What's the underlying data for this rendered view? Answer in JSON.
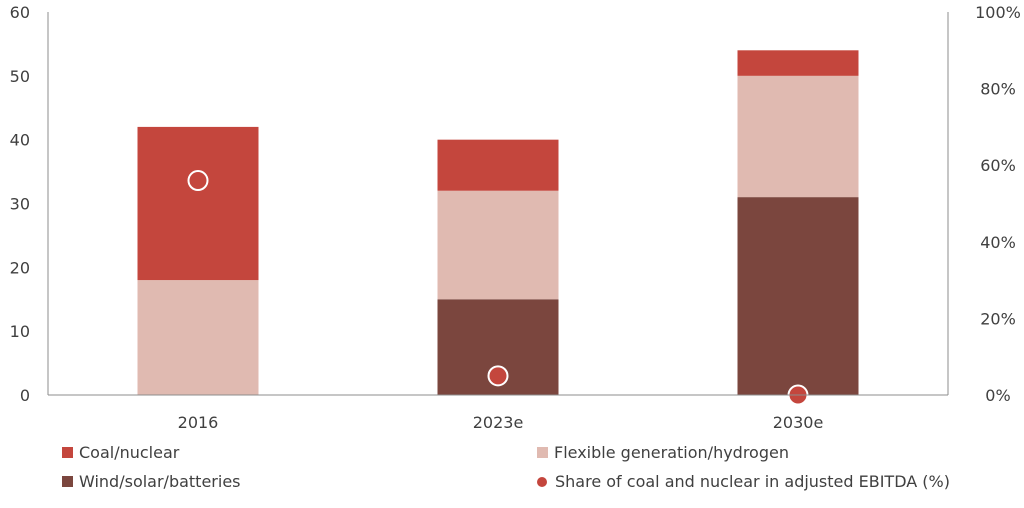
{
  "chart_data": {
    "type": "bar",
    "stacked": true,
    "categories": [
      "2016",
      "2023e",
      "2030e"
    ],
    "series": [
      {
        "name": "Wind/solar/batteries",
        "values": [
          0,
          15,
          31
        ],
        "color": "#7b463e"
      },
      {
        "name": "Flexible generation/hydrogen",
        "values": [
          18,
          17,
          19
        ],
        "color": "#e0bab1"
      },
      {
        "name": "Coal/nuclear",
        "values": [
          24,
          8,
          4
        ],
        "color": "#c4463d"
      }
    ],
    "secondary_series": {
      "name": "Share of coal and nuclear in adjusted EBITDA (%)",
      "type": "scatter",
      "axis": "right",
      "values": [
        56,
        5,
        0
      ],
      "color": "#c4463d"
    },
    "y_left": {
      "min": 0,
      "max": 60,
      "ticks": [
        "0",
        "10",
        "20",
        "30",
        "40",
        "50",
        "60"
      ]
    },
    "y_right": {
      "min": 0,
      "max": 100,
      "ticks": [
        "0%",
        "20%",
        "40%",
        "60%",
        "80%",
        "100%"
      ]
    },
    "grid": false,
    "legend_position": "bottom"
  },
  "legend": {
    "items": [
      {
        "label": "Coal/nuclear",
        "color": "#c4463d",
        "marker": "square"
      },
      {
        "label": "Flexible generation/hydrogen",
        "color": "#e0bab1",
        "marker": "square"
      },
      {
        "label": "Wind/solar/batteries",
        "color": "#7b463e",
        "marker": "square"
      },
      {
        "label": "Share of coal and nuclear in adjusted EBITDA (%)",
        "color": "#c4463d",
        "marker": "circle"
      }
    ]
  }
}
